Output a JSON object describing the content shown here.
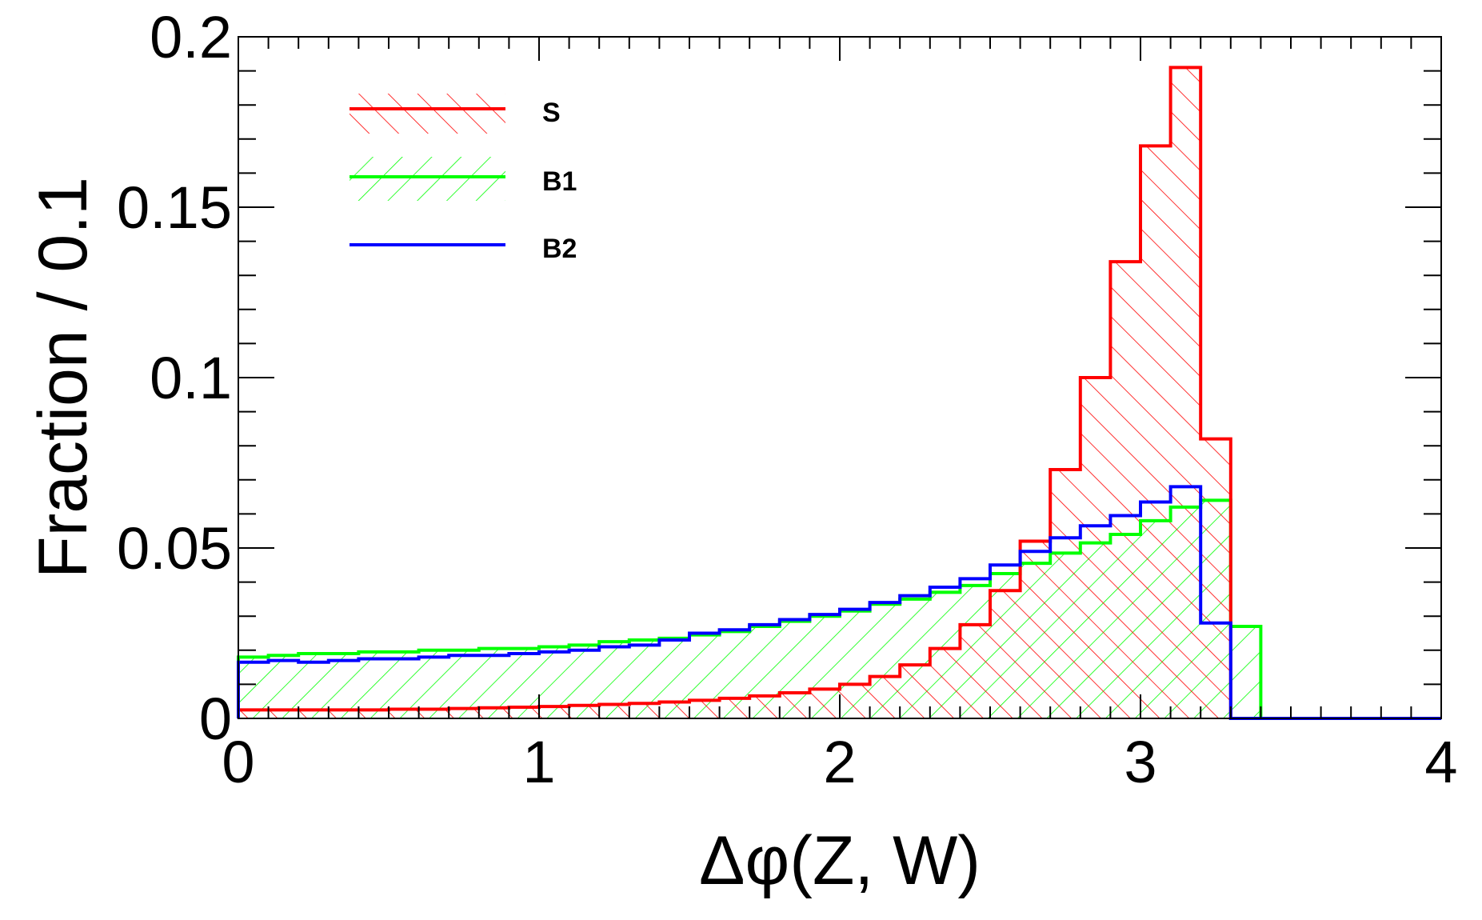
{
  "chart_data": {
    "type": "histogram",
    "title": "",
    "xlabel": "Δφ(Z, W)",
    "ylabel": "Fraction / 0.1",
    "xlim": [
      0,
      4
    ],
    "ylim": [
      0,
      0.2
    ],
    "bin_width": 0.1,
    "x_ticks": [
      0,
      1,
      2,
      3,
      4
    ],
    "x_tick_labels": [
      "0",
      "1",
      "2",
      "3",
      "4"
    ],
    "y_ticks": [
      0,
      0.05,
      0.1,
      0.15,
      0.2
    ],
    "y_tick_labels": [
      "0",
      "0.05",
      "0.1",
      "0.15",
      "0.2"
    ],
    "legend_position": "top-left",
    "series": [
      {
        "name": "S",
        "color": "#ff0000",
        "hatch": "backslash",
        "values": [
          0.0025,
          0.0025,
          0.0025,
          0.0025,
          0.0025,
          0.0027,
          0.0027,
          0.0029,
          0.0031,
          0.0033,
          0.0035,
          0.0038,
          0.0041,
          0.0044,
          0.0048,
          0.0053,
          0.0059,
          0.0066,
          0.0075,
          0.0086,
          0.01,
          0.0123,
          0.0157,
          0.0205,
          0.0275,
          0.0375,
          0.052,
          0.073,
          0.1,
          0.134,
          0.168,
          0.191,
          0.082,
          0,
          0,
          0,
          0,
          0,
          0,
          0
        ]
      },
      {
        "name": "B1",
        "color": "#00ff00",
        "hatch": "slash",
        "values": [
          0.018,
          0.0185,
          0.019,
          0.019,
          0.0195,
          0.0195,
          0.02,
          0.02,
          0.0205,
          0.0205,
          0.021,
          0.0215,
          0.0225,
          0.023,
          0.0235,
          0.0245,
          0.0255,
          0.027,
          0.0285,
          0.03,
          0.0315,
          0.0335,
          0.035,
          0.037,
          0.039,
          0.0425,
          0.0455,
          0.0485,
          0.0515,
          0.054,
          0.058,
          0.062,
          0.064,
          0.027,
          0,
          0,
          0,
          0,
          0,
          0
        ]
      },
      {
        "name": "B2",
        "color": "#0000ff",
        "hatch": "none",
        "values": [
          0.0165,
          0.017,
          0.0165,
          0.017,
          0.0175,
          0.0175,
          0.018,
          0.0185,
          0.0185,
          0.019,
          0.0195,
          0.02,
          0.021,
          0.0215,
          0.023,
          0.025,
          0.026,
          0.0275,
          0.029,
          0.0305,
          0.032,
          0.034,
          0.036,
          0.0385,
          0.041,
          0.045,
          0.049,
          0.053,
          0.0565,
          0.0595,
          0.0635,
          0.068,
          0.028,
          0,
          0,
          0,
          0,
          0,
          0,
          0
        ]
      }
    ]
  }
}
